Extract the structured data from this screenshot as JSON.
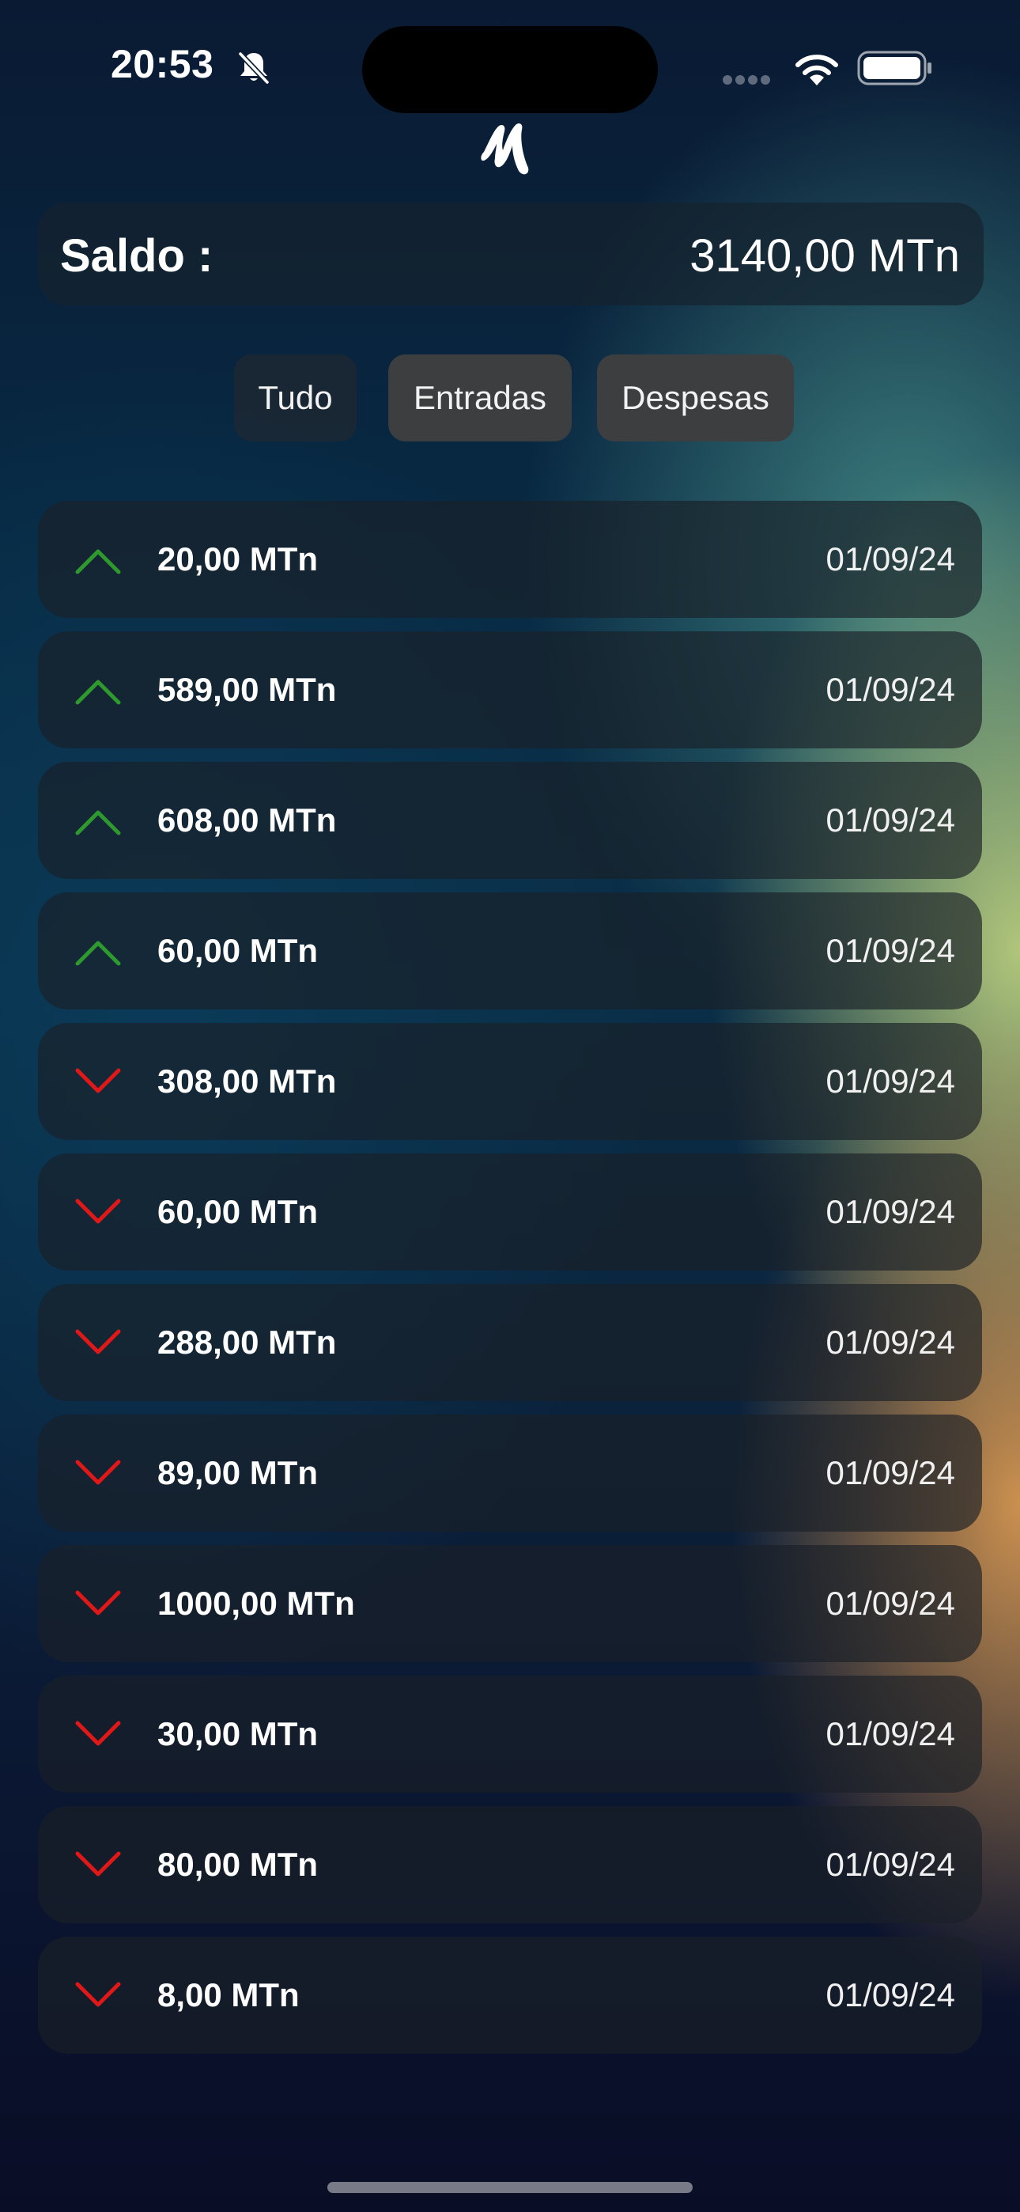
{
  "status_bar": {
    "time": "20:53",
    "icons": [
      "bell-slash-icon",
      "cellular-signal-icon",
      "wifi-icon",
      "battery-icon"
    ]
  },
  "app": {
    "logo_icon": "brand-logo-icon"
  },
  "balance": {
    "label": "Saldo :",
    "value": "3140,00 MTn"
  },
  "filters": {
    "all": "Tudo",
    "income": "Entradas",
    "expenses": "Despesas"
  },
  "colors": {
    "income": "#2e9a2e",
    "expense": "#e01818"
  },
  "transactions": [
    {
      "type": "income",
      "amount": "20,00 MTn",
      "date": "01/09/24"
    },
    {
      "type": "income",
      "amount": "589,00 MTn",
      "date": "01/09/24"
    },
    {
      "type": "income",
      "amount": "608,00 MTn",
      "date": "01/09/24"
    },
    {
      "type": "income",
      "amount": "60,00 MTn",
      "date": "01/09/24"
    },
    {
      "type": "expense",
      "amount": "308,00 MTn",
      "date": "01/09/24"
    },
    {
      "type": "expense",
      "amount": "60,00 MTn",
      "date": "01/09/24"
    },
    {
      "type": "expense",
      "amount": "288,00 MTn",
      "date": "01/09/24"
    },
    {
      "type": "expense",
      "amount": "89,00 MTn",
      "date": "01/09/24"
    },
    {
      "type": "expense",
      "amount": "1000,00 MTn",
      "date": "01/09/24"
    },
    {
      "type": "expense",
      "amount": "30,00 MTn",
      "date": "01/09/24"
    },
    {
      "type": "expense",
      "amount": "80,00 MTn",
      "date": "01/09/24"
    },
    {
      "type": "expense",
      "amount": "8,00 MTn",
      "date": "01/09/24"
    }
  ]
}
